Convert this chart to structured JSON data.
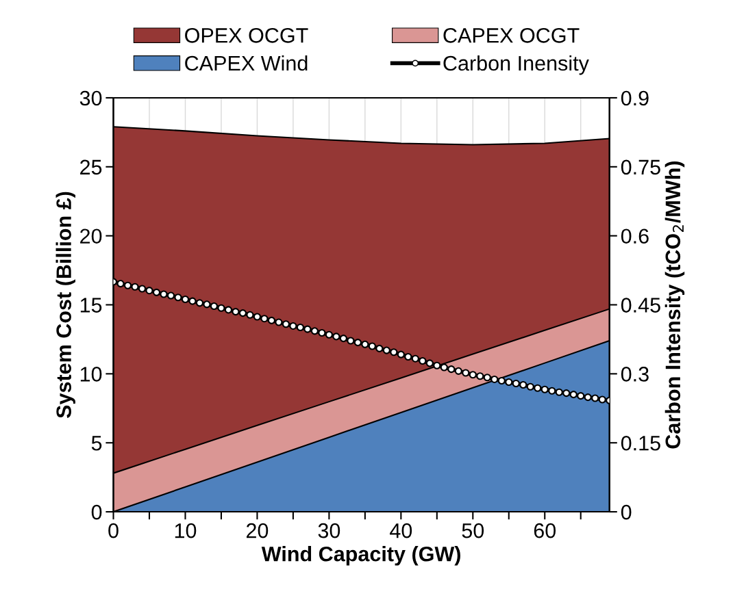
{
  "chart_data": {
    "type": "area",
    "stacked": true,
    "xlabel": "Wind Capacity (GW)",
    "ylabel": "System Cost (Billion £)",
    "y2label": "Carbon Intensity (tCO$_{2}$/MWh)",
    "x": [
      0,
      10,
      20,
      30,
      40,
      50,
      60,
      69
    ],
    "xlim": [
      0,
      69
    ],
    "xticks": [
      0,
      {
        "value": 5,
        "label": null
      },
      10,
      {
        "value": 15,
        "label": null
      },
      20,
      {
        "value": 25,
        "label": null
      },
      30,
      {
        "value": 35,
        "label": null
      },
      40,
      {
        "value": 45,
        "label": null
      },
      50,
      {
        "value": 55,
        "label": null
      },
      60,
      {
        "value": 65,
        "label": null
      }
    ],
    "ylim": [
      0,
      30
    ],
    "yticks": [
      0,
      5,
      10,
      15,
      20,
      25,
      30
    ],
    "y2lim": [
      0,
      0.9
    ],
    "y2ticks": [
      0,
      0.15,
      0.3,
      0.45,
      0.6,
      0.75,
      0.9
    ],
    "grid": "x",
    "legend": "top",
    "series": [
      {
        "name": "CAPEX Wind",
        "color": "#4f81bd",
        "values": [
          0,
          1.8,
          3.6,
          5.4,
          7.19,
          8.99,
          10.78,
          12.4
        ]
      },
      {
        "name": "CAPEX OCGT",
        "color": "#da9694",
        "values": [
          2.8,
          2.73,
          2.66,
          2.58,
          2.51,
          2.44,
          2.37,
          2.3
        ]
      },
      {
        "name": "OPEX OCGT",
        "color": "#953735",
        "values": [
          25.1,
          23.07,
          20.99,
          18.97,
          17.0,
          15.17,
          13.55,
          12.35
        ]
      },
      {
        "name": "Carbon Inensity",
        "type": "line",
        "axis": "y2",
        "color": "#000000",
        "marker": "circle",
        "x": [
          0,
          1,
          2,
          3,
          4,
          5,
          6,
          7,
          8,
          9,
          10,
          11,
          12,
          13,
          14,
          15,
          16,
          17,
          18,
          19,
          20,
          21,
          22,
          23,
          24,
          25,
          26,
          27,
          28,
          29,
          30,
          31,
          32,
          33,
          34,
          35,
          36,
          37,
          38,
          39,
          40,
          41,
          42,
          43,
          44,
          45,
          46,
          47,
          48,
          49,
          50,
          51,
          52,
          53,
          54,
          55,
          56,
          57,
          58,
          59,
          60,
          61,
          62,
          63,
          64,
          65,
          66,
          67,
          68,
          69
        ],
        "values": [
          0.5,
          0.496,
          0.492,
          0.489,
          0.485,
          0.481,
          0.477,
          0.473,
          0.47,
          0.466,
          0.462,
          0.458,
          0.454,
          0.451,
          0.447,
          0.443,
          0.439,
          0.435,
          0.432,
          0.428,
          0.424,
          0.42,
          0.416,
          0.412,
          0.408,
          0.404,
          0.401,
          0.397,
          0.393,
          0.389,
          0.385,
          0.381,
          0.377,
          0.372,
          0.368,
          0.364,
          0.36,
          0.355,
          0.351,
          0.347,
          0.342,
          0.337,
          0.333,
          0.328,
          0.323,
          0.318,
          0.314,
          0.31,
          0.306,
          0.302,
          0.298,
          0.295,
          0.292,
          0.288,
          0.285,
          0.282,
          0.279,
          0.276,
          0.272,
          0.269,
          0.266,
          0.263,
          0.26,
          0.258,
          0.255,
          0.252,
          0.249,
          0.247,
          0.244,
          0.242
        ]
      }
    ]
  }
}
